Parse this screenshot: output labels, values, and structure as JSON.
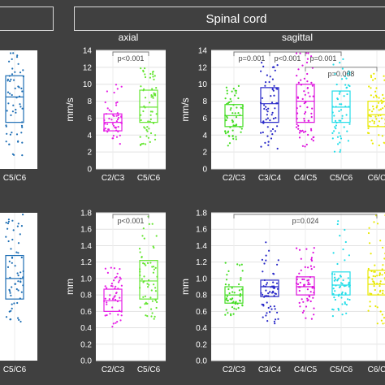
{
  "header": {
    "left_title": "",
    "right_title": "Spinal cord"
  },
  "chart_data": [
    {
      "type": "box",
      "id": "partial-top",
      "categories": [
        "C5/C6"
      ],
      "colors": [
        "#1f6fb5"
      ],
      "ylim": [
        0,
        14
      ],
      "yticks": [],
      "boxes": [
        {
          "q1": 5.5,
          "median": 8.5,
          "q3": 11,
          "wlo": 1,
          "whi": 14.5,
          "n": 60
        }
      ],
      "points_spread": [
        [
          1,
          14
        ]
      ],
      "significance": []
    },
    {
      "type": "box",
      "id": "axial-velocity",
      "view_label": "axial",
      "ylabel": "mm/s",
      "categories": [
        "C2/C3",
        "C5/C6"
      ],
      "colors": [
        "#e61ee6",
        "#66e633"
      ],
      "ylim": [
        0,
        14
      ],
      "yticks": [
        0,
        2,
        4,
        6,
        8,
        10,
        12,
        14
      ],
      "boxes": [
        {
          "q1": 4.5,
          "median": 5.5,
          "q3": 6.5,
          "wlo": 2.5,
          "whi": 10.3,
          "n": 50
        },
        {
          "q1": 5.5,
          "median": 7.3,
          "q3": 9.3,
          "wlo": 2.5,
          "whi": 12,
          "n": 60
        }
      ],
      "significance": [
        {
          "from": 0,
          "to": 1,
          "label": "p<0.001",
          "level": 14.2
        }
      ]
    },
    {
      "type": "box",
      "id": "sagittal-velocity",
      "view_label": "sagittal",
      "ylabel": "mm/s",
      "categories": [
        "C2/C3",
        "C3/C4",
        "C4/C5",
        "C5/C6",
        "C6/C"
      ],
      "colors": [
        "#44dd22",
        "#2828c8",
        "#dd11dd",
        "#22dde8",
        "#e8e800"
      ],
      "ylim": [
        0,
        14
      ],
      "yticks": [
        0,
        2,
        4,
        6,
        8,
        10,
        12,
        14
      ],
      "boxes": [
        {
          "q1": 5,
          "median": 6.3,
          "q3": 7.6,
          "wlo": 2.5,
          "whi": 10,
          "n": 60
        },
        {
          "q1": 5.5,
          "median": 7.7,
          "q3": 9.6,
          "wlo": 2.3,
          "whi": 13.2,
          "n": 60
        },
        {
          "q1": 5.5,
          "median": 8,
          "q3": 10,
          "wlo": 2.5,
          "whi": 15,
          "n": 70
        },
        {
          "q1": 5.5,
          "median": 7.3,
          "q3": 9.2,
          "wlo": 2,
          "whi": 13,
          "n": 60
        },
        {
          "q1": 5,
          "median": 6.4,
          "q3": 8,
          "wlo": 2.3,
          "whi": 11.5,
          "n": 60
        }
      ],
      "significance": [
        {
          "from": 0,
          "to": 1,
          "label": "p=0.001",
          "level": 13.8
        },
        {
          "from": 1,
          "to": 2,
          "label": "p<0.001",
          "level": 13.8
        },
        {
          "from": 2,
          "to": 3,
          "label": "p=0.001",
          "level": 13.8
        },
        {
          "from": 0,
          "to": 3,
          "label": "",
          "level": 14.2
        },
        {
          "from": 2,
          "to": 4,
          "label": "p=0.008",
          "level": 12.0
        }
      ]
    },
    {
      "type": "box",
      "id": "partial-bottom",
      "categories": [
        "C5/C6"
      ],
      "colors": [
        "#1f6fb5"
      ],
      "ylim": [
        0,
        1.8
      ],
      "yticks": [],
      "boxes": [
        {
          "q1": 0.75,
          "median": 1.0,
          "q3": 1.28,
          "wlo": 0.45,
          "whi": 1.8,
          "n": 60
        }
      ],
      "significance": []
    },
    {
      "type": "box",
      "id": "axial-displacement",
      "ylabel": "mm",
      "categories": [
        "C2/C3",
        "C5/C6"
      ],
      "colors": [
        "#e61ee6",
        "#66e633"
      ],
      "ylim": [
        0,
        1.8
      ],
      "yticks": [
        0,
        0.2,
        0.4,
        0.6,
        0.8,
        1.0,
        1.2,
        1.4,
        1.6,
        1.8
      ],
      "boxes": [
        {
          "q1": 0.6,
          "median": 0.73,
          "q3": 0.87,
          "wlo": 0.4,
          "whi": 1.15,
          "n": 50
        },
        {
          "q1": 0.75,
          "median": 0.97,
          "q3": 1.22,
          "wlo": 0.45,
          "whi": 1.8,
          "n": 60
        }
      ],
      "significance": [
        {
          "from": 0,
          "to": 1,
          "label": "p<0.001",
          "level": 1.85
        }
      ]
    },
    {
      "type": "box",
      "id": "sagittal-displacement",
      "ylabel": "mm",
      "categories": [
        "C2/C3",
        "C3/C4",
        "C4/C5",
        "C5/C6",
        "C6/C"
      ],
      "colors": [
        "#44dd22",
        "#2828c8",
        "#dd11dd",
        "#22dde8",
        "#e8e800"
      ],
      "ylim": [
        0,
        1.8
      ],
      "yticks": [
        0,
        0.2,
        0.4,
        0.6,
        0.8,
        1.0,
        1.2,
        1.4,
        1.6,
        1.8
      ],
      "boxes": [
        {
          "q1": 0.7,
          "median": 0.8,
          "q3": 0.9,
          "wlo": 0.55,
          "whi": 1.2,
          "n": 50
        },
        {
          "q1": 0.78,
          "median": 0.9,
          "q3": 0.98,
          "wlo": 0.45,
          "whi": 1.5,
          "n": 60
        },
        {
          "q1": 0.8,
          "median": 0.9,
          "q3": 1.02,
          "wlo": 0.5,
          "whi": 1.4,
          "n": 60
        },
        {
          "q1": 0.8,
          "median": 0.92,
          "q3": 1.08,
          "wlo": 0.5,
          "whi": 1.7,
          "n": 60
        },
        {
          "q1": 0.8,
          "median": 0.93,
          "q3": 1.1,
          "wlo": 0.45,
          "whi": 1.8,
          "n": 60
        }
      ],
      "significance": [
        {
          "from": 0,
          "to": 4,
          "label": "p=0.024",
          "level": 1.82
        }
      ]
    }
  ]
}
